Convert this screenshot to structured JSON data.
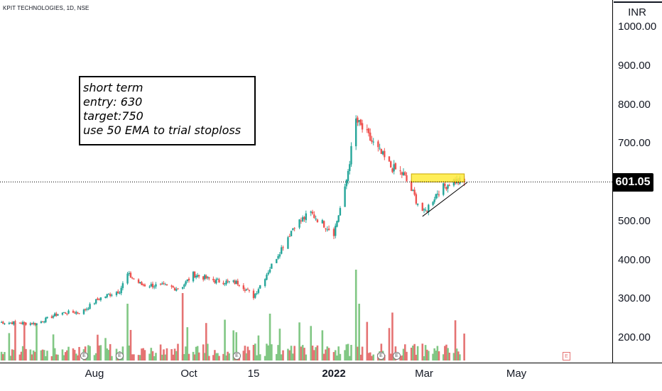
{
  "symbol_title": "KPIT TECHNOLOGIES, 1D, NSE",
  "currency": "INR",
  "last_price": "601.05",
  "note": {
    "lines": [
      "short term",
      "entry: 630",
      "target:750",
      "use 50 EMA to trial stoploss"
    ]
  },
  "earnings_marker": "E",
  "colors": {
    "up": "#26a69a",
    "down": "#ef5350",
    "vol_up": "#81c784",
    "vol_down": "#e57373",
    "zone": "#ffeb3b"
  },
  "chart_data": {
    "type": "candlestick",
    "y_axis": {
      "unit": "INR",
      "ylim": [
        130,
        1035
      ],
      "ticks": [
        "1000.00",
        "900.00",
        "800.00",
        "700.00",
        "500.00",
        "400.00",
        "300.00",
        "200.00"
      ]
    },
    "x_axis": {
      "ticks": [
        "Aug",
        "Oct",
        "15",
        "2022",
        "Mar",
        "May"
      ],
      "bold_tick": "2022"
    },
    "last_price_line": 601.05,
    "resistance_zone": {
      "low": 601,
      "high": 622,
      "from": "2022-02-21",
      "to": "2022-03-28"
    },
    "trendline": {
      "from": {
        "date": "2022-02-28",
        "price": 512
      },
      "to": {
        "date": "2022-03-30",
        "price": 600
      }
    },
    "price_path": [
      {
        "date": "2021-06-01",
        "close": 238
      },
      {
        "date": "2021-06-25",
        "close": 235
      },
      {
        "date": "2021-07-10",
        "close": 262
      },
      {
        "date": "2021-07-25",
        "close": 265
      },
      {
        "date": "2021-08-05",
        "close": 300
      },
      {
        "date": "2021-08-18",
        "close": 320
      },
      {
        "date": "2021-08-23",
        "close": 362
      },
      {
        "date": "2021-09-01",
        "close": 335
      },
      {
        "date": "2021-09-15",
        "close": 332
      },
      {
        "date": "2021-09-25",
        "close": 325
      },
      {
        "date": "2021-10-04",
        "close": 362
      },
      {
        "date": "2021-10-20",
        "close": 345
      },
      {
        "date": "2021-11-05",
        "close": 340
      },
      {
        "date": "2021-11-15",
        "close": 305
      },
      {
        "date": "2021-11-28",
        "close": 400
      },
      {
        "date": "2021-12-10",
        "close": 490
      },
      {
        "date": "2021-12-20",
        "close": 520
      },
      {
        "date": "2022-01-03",
        "close": 470
      },
      {
        "date": "2022-01-10",
        "close": 580
      },
      {
        "date": "2022-01-17",
        "close": 760
      },
      {
        "date": "2022-01-27",
        "close": 705
      },
      {
        "date": "2022-02-08",
        "close": 640
      },
      {
        "date": "2022-02-16",
        "close": 620
      },
      {
        "date": "2022-02-24",
        "close": 555
      },
      {
        "date": "2022-03-01",
        "close": 520
      },
      {
        "date": "2022-03-10",
        "close": 575
      },
      {
        "date": "2022-03-20",
        "close": 605
      },
      {
        "date": "2022-03-28",
        "close": 601
      }
    ]
  }
}
